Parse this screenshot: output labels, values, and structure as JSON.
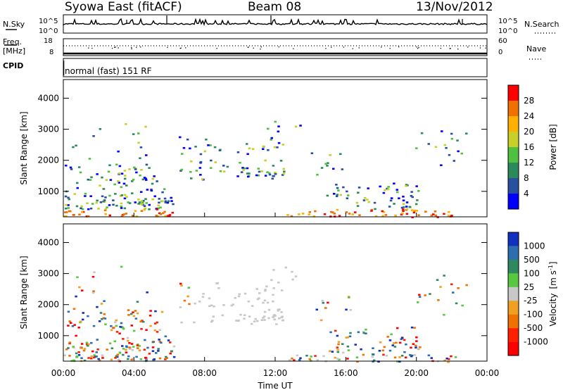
{
  "header": {
    "station": "Syowa East (fitACF)",
    "beam": "Beam 08",
    "date": "13/Nov/2012"
  },
  "noise_panel": {
    "left_label": "N.Sky",
    "right_label": "N.Search",
    "left_ticks": [
      "10^5",
      "10^0"
    ],
    "right_ticks": [
      "10^5",
      "10^0"
    ]
  },
  "freq_panel": {
    "left_label": "Freq.",
    "left_unit": "[MHz]",
    "right_label": "Nave",
    "left_ticks": [
      "18",
      "8"
    ],
    "right_ticks": [
      "60",
      "0"
    ]
  },
  "cpid_panel": {
    "label": "CPID",
    "mode": "normal (fast) 151 RF"
  },
  "chart_data": [
    {
      "type": "heatmap",
      "ylabel": "Slant Range [km]",
      "xlabel": "",
      "x_ticks": [
        "00:00",
        "04:00",
        "08:00",
        "12:00",
        "16:00",
        "20:00",
        "00:00"
      ],
      "y_ticks": [
        "1000",
        "2000",
        "3000",
        "4000"
      ],
      "ylim": [
        180,
        4600
      ],
      "colorbar": {
        "label": "Power [dB]",
        "ticks": [
          "28",
          "24",
          "20",
          "16",
          "12",
          "8",
          "4"
        ],
        "colors": [
          "#ff0000",
          "#f07000",
          "#ffb000",
          "#c8d028",
          "#50c040",
          "#2a8a5c",
          "#2850a0",
          "#0000ff"
        ]
      }
    },
    {
      "type": "heatmap",
      "ylabel": "Slant Range [km]",
      "xlabel": "Time UT",
      "x_ticks": [
        "00:00",
        "04:00",
        "08:00",
        "12:00",
        "16:00",
        "20:00",
        "00:00"
      ],
      "y_ticks": [
        "1000",
        "2000",
        "3000",
        "4000"
      ],
      "ylim": [
        180,
        4600
      ],
      "colorbar": {
        "label": "Velocity",
        "unit": "[m s",
        "unit_exponent": "-1",
        "unit_close": "]",
        "ticks": [
          "1000",
          "500",
          "100",
          "25",
          "-25",
          "-100",
          "-500",
          "-1000"
        ],
        "colors": [
          "#1030c0",
          "#2e6eb0",
          "#2e8a5e",
          "#58c840",
          "#c8c8c8",
          "#f0a020",
          "#f07000",
          "#ff2000",
          "#ff0000"
        ]
      }
    }
  ]
}
